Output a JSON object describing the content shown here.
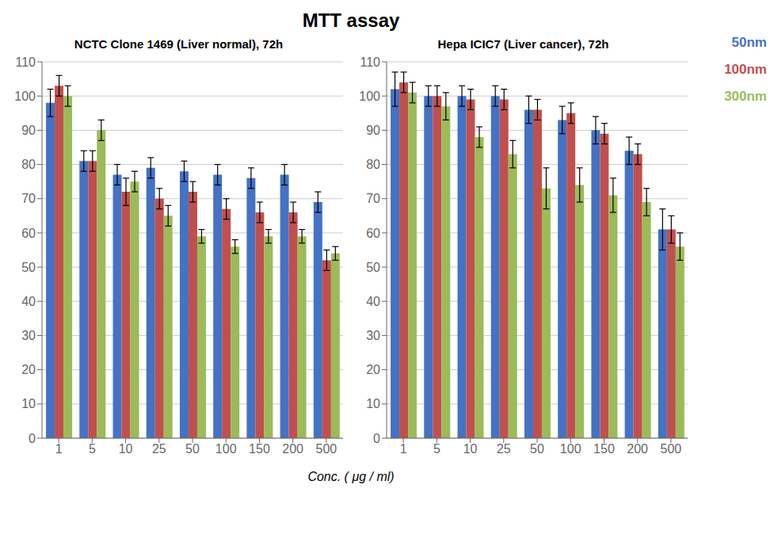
{
  "title": "MTT assay",
  "xlabel": "Conc. ( μg / ml)",
  "legend": "upper right",
  "chart_data": [
    {
      "type": "bar",
      "subtitle": "NCTC Clone 1469 (Liver normal), 72h",
      "categories": [
        "1",
        "5",
        "10",
        "25",
        "50",
        "100",
        "150",
        "200",
        "500"
      ],
      "series": [
        {
          "name": "50nm",
          "color": "#4472C4",
          "values": [
            98,
            81,
            77,
            79,
            78,
            77,
            76,
            77,
            69
          ],
          "errors": [
            4,
            3,
            3,
            3,
            3,
            3,
            3,
            3,
            3
          ]
        },
        {
          "name": "100nm",
          "color": "#C0504D",
          "values": [
            103,
            81,
            72,
            70,
            72,
            67,
            66,
            66,
            52
          ],
          "errors": [
            3,
            3,
            4,
            3,
            3,
            3,
            3,
            3,
            3
          ]
        },
        {
          "name": "300nm",
          "color": "#9BBB59",
          "values": [
            100,
            90,
            75,
            65,
            59,
            56,
            59,
            59,
            54
          ],
          "errors": [
            3,
            3,
            3,
            3,
            2,
            2,
            2,
            2,
            2
          ]
        }
      ],
      "ylim": [
        0,
        110
      ],
      "yticks": [
        0,
        10,
        20,
        30,
        40,
        50,
        60,
        70,
        80,
        90,
        100,
        110
      ],
      "grid": true
    },
    {
      "type": "bar",
      "subtitle": "Hepa ICIC7 (Liver cancer), 72h",
      "categories": [
        "1",
        "5",
        "10",
        "25",
        "50",
        "100",
        "150",
        "200",
        "500"
      ],
      "series": [
        {
          "name": "50nm",
          "color": "#4472C4",
          "values": [
            102,
            100,
            100,
            100,
            96,
            93,
            90,
            84,
            61
          ],
          "errors": [
            5,
            3,
            3,
            3,
            4,
            4,
            4,
            4,
            6
          ]
        },
        {
          "name": "100nm",
          "color": "#C0504D",
          "values": [
            104,
            100,
            99,
            99,
            96,
            95,
            89,
            83,
            61
          ],
          "errors": [
            3,
            3,
            3,
            3,
            3,
            3,
            3,
            3,
            4
          ]
        },
        {
          "name": "300nm",
          "color": "#9BBB59",
          "values": [
            101,
            97,
            88,
            83,
            73,
            74,
            71,
            69,
            56
          ],
          "errors": [
            3,
            4,
            3,
            4,
            6,
            5,
            5,
            4,
            4
          ]
        }
      ],
      "ylim": [
        0,
        110
      ],
      "yticks": [
        0,
        10,
        20,
        30,
        40,
        50,
        60,
        70,
        80,
        90,
        100,
        110
      ],
      "grid": true
    }
  ]
}
